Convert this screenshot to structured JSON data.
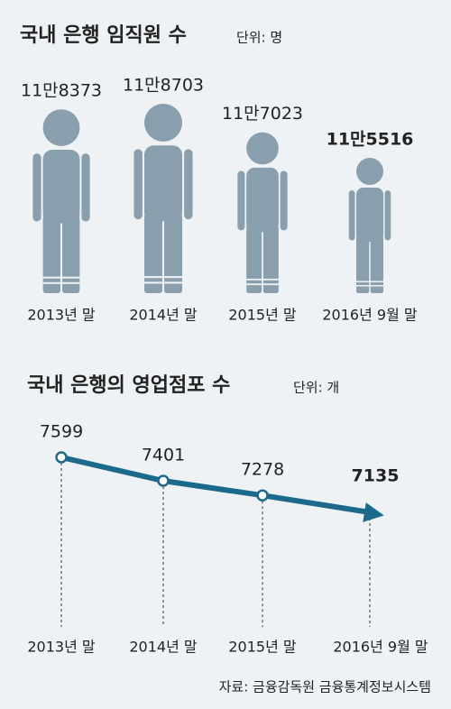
{
  "chart_data": [
    {
      "type": "pictogram",
      "title": "국내 은행 임직원 수",
      "unit": "단위: 명",
      "categories": [
        "2013년 말",
        "2014년 말",
        "2015년 말",
        "2016년 9월 말"
      ],
      "values": [
        118373,
        118703,
        117023,
        115516
      ],
      "value_labels": [
        "11만8373",
        "11만8703",
        "11만7023",
        "11만5516"
      ],
      "color": "#8a9fad"
    },
    {
      "type": "line",
      "title": "국내 은행의 영업점포 수",
      "unit": "단위: 개",
      "categories": [
        "2013년 말",
        "2014년 말",
        "2015년 말",
        "2016년 9월 말"
      ],
      "values": [
        7599,
        7401,
        7278,
        7135
      ],
      "color": "#1b6a8c"
    }
  ],
  "source": "자료: 금융감독원 금융통계정보시스템"
}
